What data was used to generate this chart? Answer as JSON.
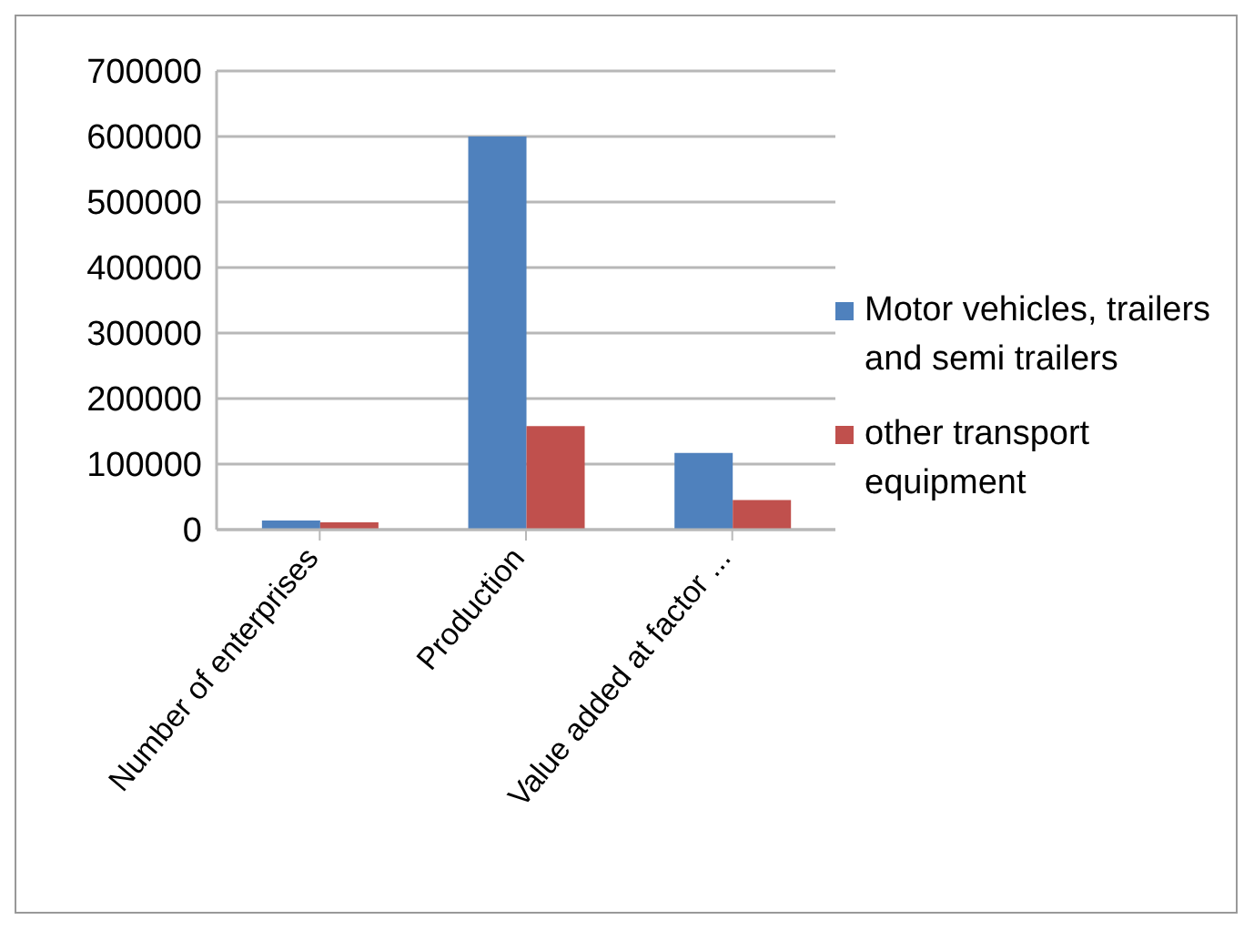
{
  "chart_data": {
    "type": "bar",
    "categories": [
      "Number of enterprises",
      "Production",
      "Value added at factor ..."
    ],
    "series": [
      {
        "name": "Motor vehicles, trailers and semi trailers",
        "color": "#4f81bd",
        "values": [
          14000,
          600000,
          117000
        ]
      },
      {
        "name": "other transport equipment",
        "color": "#c0504d",
        "values": [
          11000,
          158000,
          45000
        ]
      }
    ],
    "ylim": [
      0,
      700000
    ],
    "yticks": [
      0,
      100000,
      200000,
      300000,
      400000,
      500000,
      600000,
      700000
    ],
    "grid": "y",
    "legend": "right"
  }
}
